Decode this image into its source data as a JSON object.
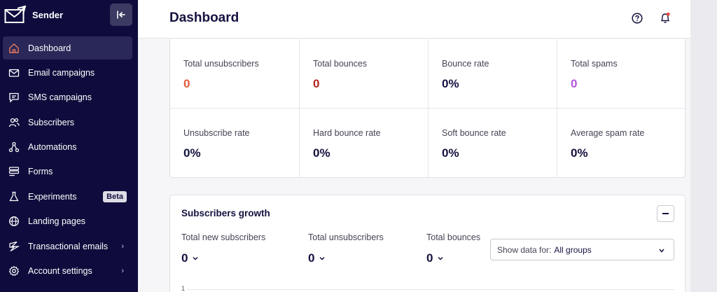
{
  "app": {
    "name": "Sender"
  },
  "sidebar": {
    "items": [
      {
        "label": "Dashboard",
        "icon": "home-icon"
      },
      {
        "label": "Email campaigns",
        "icon": "mail-icon"
      },
      {
        "label": "SMS campaigns",
        "icon": "chat-icon"
      },
      {
        "label": "Subscribers",
        "icon": "users-icon"
      },
      {
        "label": "Automations",
        "icon": "automation-icon"
      },
      {
        "label": "Forms",
        "icon": "form-icon"
      },
      {
        "label": "Experiments",
        "icon": "flask-icon",
        "badge": "Beta"
      },
      {
        "label": "Landing pages",
        "icon": "globe-icon"
      },
      {
        "label": "Transactional emails",
        "icon": "bolt-icon"
      },
      {
        "label": "Account settings",
        "icon": "settings-icon"
      }
    ]
  },
  "header": {
    "title": "Dashboard"
  },
  "stats": [
    {
      "label": "Total unsubscribers",
      "value": "0",
      "color": "#e05a3a"
    },
    {
      "label": "Total bounces",
      "value": "0",
      "color": "#b3261e"
    },
    {
      "label": "Bounce rate",
      "value": "0%",
      "color": "#14123f"
    },
    {
      "label": "Total spams",
      "value": "0",
      "color": "#b455e0"
    },
    {
      "label": "Unsubscribe rate",
      "value": "0%",
      "color": "#14123f"
    },
    {
      "label": "Hard bounce rate",
      "value": "0%",
      "color": "#14123f"
    },
    {
      "label": "Soft bounce rate",
      "value": "0%",
      "color": "#14123f"
    },
    {
      "label": "Average spam rate",
      "value": "0%",
      "color": "#14123f"
    }
  ],
  "growth": {
    "title": "Subscribers growth",
    "metrics": [
      {
        "label": "Total new subscribers",
        "value": "0"
      },
      {
        "label": "Total unsubscribers",
        "value": "0"
      },
      {
        "label": "Total bounces",
        "value": "0"
      }
    ],
    "select_label": "Show data for:",
    "select_value": "All groups",
    "axis_tick": "1"
  },
  "colors": {
    "sidebar_bg": "#0f0c3d",
    "active_item": "#2a2858",
    "notification_dot": "#e5483b"
  }
}
